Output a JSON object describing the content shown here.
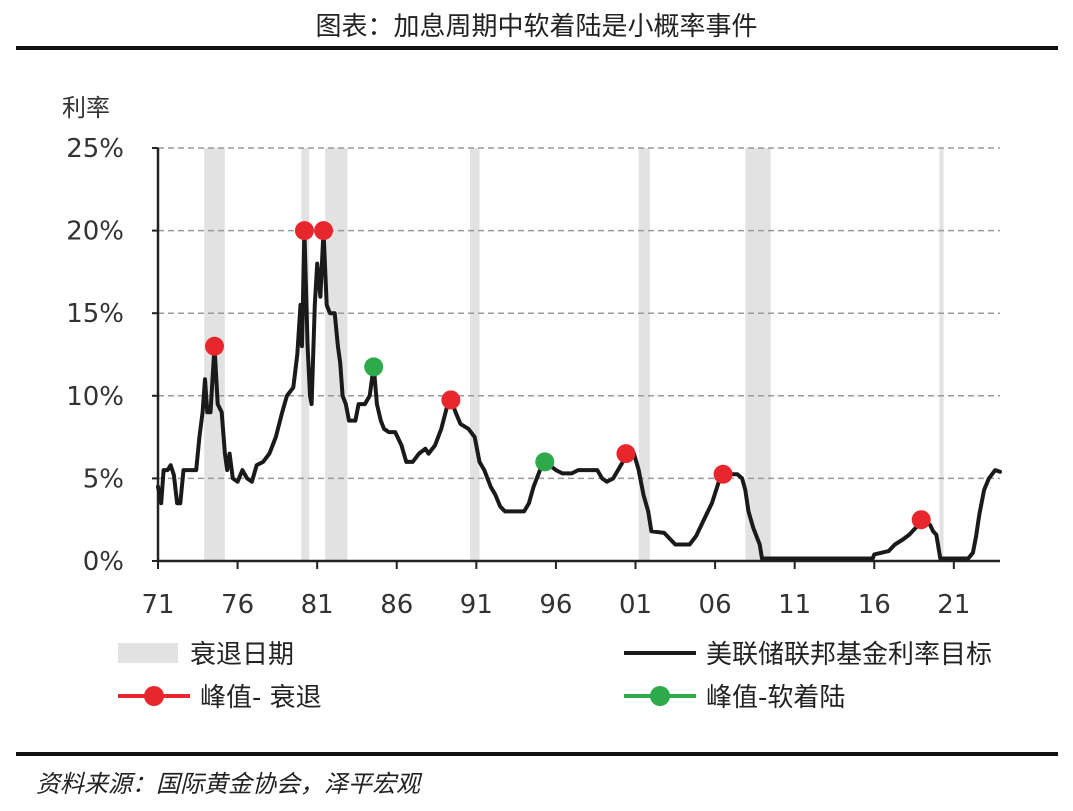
{
  "title": "图表：加息周期中软着陆是小概率事件",
  "source": "资料来源：国际黄金协会，泽平宏观",
  "chart_data": {
    "type": "line",
    "ylabel": "利率",
    "xlabel": "",
    "x_ticks": [
      "71",
      "76",
      "81",
      "86",
      "91",
      "96",
      "01",
      "06",
      "11",
      "16",
      "21"
    ],
    "x_tick_years": [
      1971,
      1976,
      1981,
      1986,
      1991,
      1996,
      2001,
      2006,
      2011,
      2016,
      2021
    ],
    "y_ticks": [
      "0%",
      "5%",
      "10%",
      "15%",
      "20%",
      "25%"
    ],
    "ylim": [
      0,
      25
    ],
    "xlim": [
      1971,
      2023.9
    ],
    "grid": true,
    "legend_placement": "bottom",
    "colors": {
      "line": "#1a1a1a",
      "recession": "#e2e2e2",
      "peak_recession": "#e8262e",
      "peak_soft_landing": "#2eaa4a",
      "grid": "#9a9a9a"
    },
    "legend": {
      "recession": "衰退日期",
      "line": "美联储联邦基金利率目标",
      "peak_recession": "峰值- 衰退",
      "peak_soft_landing": "峰值-软着陆"
    },
    "recessions": [
      [
        1973.9,
        1975.2
      ],
      [
        1980.0,
        1980.5
      ],
      [
        1981.5,
        1982.9
      ],
      [
        1990.6,
        1991.2
      ],
      [
        2001.2,
        2001.9
      ],
      [
        2007.9,
        2009.5
      ],
      [
        2020.1,
        2020.35
      ]
    ],
    "series": [
      {
        "values": [
          [
            1971.0,
            4.5
          ],
          [
            1971.2,
            3.5
          ],
          [
            1971.35,
            5.5
          ],
          [
            1971.6,
            5.5
          ],
          [
            1971.8,
            5.8
          ],
          [
            1972.0,
            5.2
          ],
          [
            1972.2,
            3.5
          ],
          [
            1972.4,
            3.5
          ],
          [
            1972.6,
            5.5
          ],
          [
            1973.0,
            5.5
          ],
          [
            1973.4,
            5.5
          ],
          [
            1973.6,
            7.5
          ],
          [
            1973.8,
            9.0
          ],
          [
            1973.95,
            11.0
          ],
          [
            1974.1,
            9.0
          ],
          [
            1974.3,
            9.0
          ],
          [
            1974.55,
            13.0
          ],
          [
            1974.75,
            9.5
          ],
          [
            1975.0,
            9.0
          ],
          [
            1975.2,
            6.5
          ],
          [
            1975.35,
            5.5
          ],
          [
            1975.5,
            6.5
          ],
          [
            1975.7,
            5.0
          ],
          [
            1976.0,
            4.8
          ],
          [
            1976.3,
            5.5
          ],
          [
            1976.6,
            5.0
          ],
          [
            1976.9,
            4.8
          ],
          [
            1977.2,
            5.8
          ],
          [
            1977.6,
            6.0
          ],
          [
            1978.0,
            6.5
          ],
          [
            1978.4,
            7.5
          ],
          [
            1978.8,
            9.0
          ],
          [
            1979.1,
            10.0
          ],
          [
            1979.5,
            10.5
          ],
          [
            1979.75,
            12.5
          ],
          [
            1979.95,
            15.5
          ],
          [
            1980.05,
            13.0
          ],
          [
            1980.2,
            20.0
          ],
          [
            1980.4,
            13.0
          ],
          [
            1980.55,
            10.0
          ],
          [
            1980.65,
            9.5
          ],
          [
            1980.85,
            15.5
          ],
          [
            1981.0,
            18.0
          ],
          [
            1981.2,
            16.0
          ],
          [
            1981.4,
            20.0
          ],
          [
            1981.6,
            15.5
          ],
          [
            1981.8,
            15.0
          ],
          [
            1982.1,
            15.0
          ],
          [
            1982.3,
            13.0
          ],
          [
            1982.45,
            12.0
          ],
          [
            1982.6,
            10.0
          ],
          [
            1982.8,
            9.5
          ],
          [
            1983.0,
            8.5
          ],
          [
            1983.4,
            8.5
          ],
          [
            1983.6,
            9.5
          ],
          [
            1984.0,
            9.5
          ],
          [
            1984.3,
            10.0
          ],
          [
            1984.55,
            11.8
          ],
          [
            1984.75,
            9.5
          ],
          [
            1985.0,
            8.5
          ],
          [
            1985.2,
            8.0
          ],
          [
            1985.5,
            7.8
          ],
          [
            1985.9,
            7.8
          ],
          [
            1986.3,
            7.0
          ],
          [
            1986.6,
            6.0
          ],
          [
            1987.0,
            6.0
          ],
          [
            1987.4,
            6.5
          ],
          [
            1987.8,
            6.8
          ],
          [
            1988.0,
            6.5
          ],
          [
            1988.4,
            7.0
          ],
          [
            1988.8,
            8.0
          ],
          [
            1989.2,
            9.5
          ],
          [
            1989.4,
            9.8
          ],
          [
            1989.7,
            9.0
          ],
          [
            1990.0,
            8.3
          ],
          [
            1990.5,
            8.0
          ],
          [
            1990.9,
            7.5
          ],
          [
            1991.2,
            6.0
          ],
          [
            1991.5,
            5.5
          ],
          [
            1991.9,
            4.5
          ],
          [
            1992.2,
            4.0
          ],
          [
            1992.5,
            3.3
          ],
          [
            1992.8,
            3.0
          ],
          [
            1993.5,
            3.0
          ],
          [
            1994.0,
            3.0
          ],
          [
            1994.3,
            3.5
          ],
          [
            1994.6,
            4.5
          ],
          [
            1995.0,
            5.5
          ],
          [
            1995.3,
            6.0
          ],
          [
            1995.6,
            5.8
          ],
          [
            1996.0,
            5.5
          ],
          [
            1996.4,
            5.3
          ],
          [
            1997.0,
            5.3
          ],
          [
            1997.4,
            5.5
          ],
          [
            1998.0,
            5.5
          ],
          [
            1998.6,
            5.5
          ],
          [
            1998.9,
            5.0
          ],
          [
            1999.2,
            4.8
          ],
          [
            1999.6,
            5.0
          ],
          [
            1999.9,
            5.5
          ],
          [
            2000.2,
            6.0
          ],
          [
            2000.4,
            6.5
          ],
          [
            2000.9,
            6.5
          ],
          [
            2001.2,
            5.5
          ],
          [
            2001.5,
            4.0
          ],
          [
            2001.8,
            3.0
          ],
          [
            2002.0,
            1.8
          ],
          [
            2002.8,
            1.7
          ],
          [
            2003.2,
            1.3
          ],
          [
            2003.5,
            1.0
          ],
          [
            2004.4,
            1.0
          ],
          [
            2004.8,
            1.5
          ],
          [
            2005.3,
            2.5
          ],
          [
            2005.8,
            3.5
          ],
          [
            2006.3,
            5.0
          ],
          [
            2006.5,
            5.25
          ],
          [
            2007.4,
            5.25
          ],
          [
            2007.7,
            5.0
          ],
          [
            2007.9,
            4.3
          ],
          [
            2008.1,
            3.0
          ],
          [
            2008.4,
            2.0
          ],
          [
            2008.8,
            1.0
          ],
          [
            2008.95,
            0.15
          ],
          [
            2009.5,
            0.15
          ],
          [
            2015.9,
            0.15
          ],
          [
            2016.0,
            0.4
          ],
          [
            2016.9,
            0.6
          ],
          [
            2017.3,
            1.0
          ],
          [
            2017.8,
            1.3
          ],
          [
            2018.2,
            1.6
          ],
          [
            2018.7,
            2.1
          ],
          [
            2018.95,
            2.5
          ],
          [
            2019.5,
            2.2
          ],
          [
            2019.7,
            1.8
          ],
          [
            2019.9,
            1.6
          ],
          [
            2020.15,
            0.15
          ],
          [
            2021.9,
            0.15
          ],
          [
            2022.2,
            0.5
          ],
          [
            2022.4,
            1.5
          ],
          [
            2022.6,
            2.8
          ],
          [
            2022.9,
            4.3
          ],
          [
            2023.2,
            5.0
          ],
          [
            2023.6,
            5.5
          ],
          [
            2023.9,
            5.4
          ]
        ]
      }
    ],
    "peaks_recession": [
      [
        1974.55,
        13.0
      ],
      [
        1980.2,
        20.0
      ],
      [
        1981.4,
        20.0
      ],
      [
        1989.4,
        9.75
      ],
      [
        2000.4,
        6.5
      ],
      [
        2006.5,
        5.25
      ],
      [
        2018.95,
        2.5
      ]
    ],
    "peaks_soft_landing": [
      [
        1984.55,
        11.75
      ],
      [
        1995.3,
        6.0
      ]
    ]
  }
}
